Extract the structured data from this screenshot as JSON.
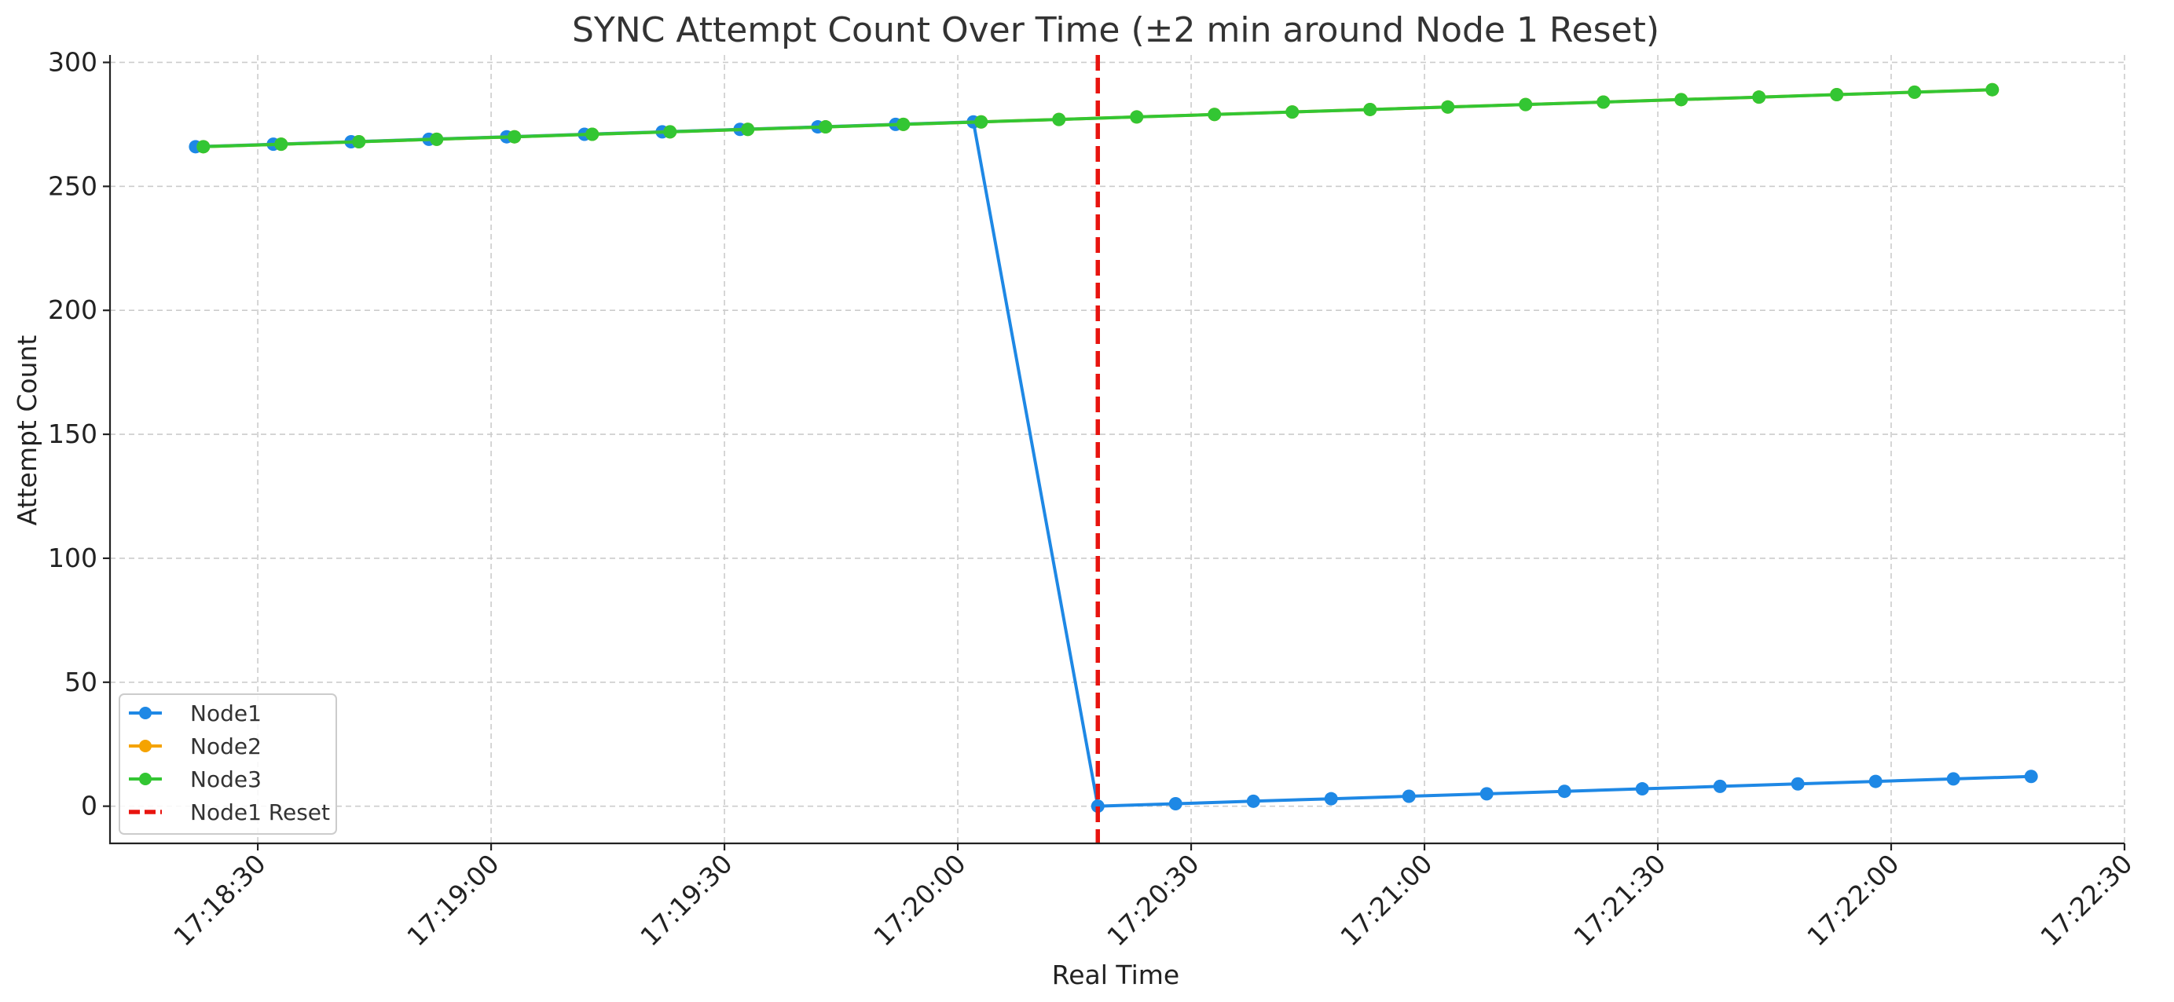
{
  "chart_data": {
    "type": "line",
    "title": "SYNC Attempt Count Over Time (±2 min around Node 1 Reset)",
    "xlabel": "Real Time",
    "ylabel": "Attempt Count",
    "xlim": [
      "17:18:11",
      "17:22:30"
    ],
    "ylim": [
      -15,
      303
    ],
    "x_ticks": [
      "17:18:30",
      "17:19:00",
      "17:19:30",
      "17:20:00",
      "17:20:30",
      "17:21:00",
      "17:21:30",
      "17:22:00",
      "17:22:30"
    ],
    "y_ticks": [
      0,
      50,
      100,
      150,
      200,
      250,
      300
    ],
    "grid": true,
    "legend_position": "lower-left",
    "series": [
      {
        "name": "Node1",
        "color": "#1e88e5",
        "marker": "circle",
        "points": [
          {
            "x": "17:18:22",
            "y": 266
          },
          {
            "x": "17:18:32",
            "y": 267
          },
          {
            "x": "17:18:42",
            "y": 268
          },
          {
            "x": "17:18:52",
            "y": 269
          },
          {
            "x": "17:19:02",
            "y": 270
          },
          {
            "x": "17:19:12",
            "y": 271
          },
          {
            "x": "17:19:22",
            "y": 272
          },
          {
            "x": "17:19:32",
            "y": 273
          },
          {
            "x": "17:19:42",
            "y": 274
          },
          {
            "x": "17:19:52",
            "y": 275
          },
          {
            "x": "17:20:02",
            "y": 276
          },
          {
            "x": "17:20:18",
            "y": 0
          },
          {
            "x": "17:20:28",
            "y": 1
          },
          {
            "x": "17:20:38",
            "y": 2
          },
          {
            "x": "17:20:48",
            "y": 3
          },
          {
            "x": "17:20:58",
            "y": 4
          },
          {
            "x": "17:21:08",
            "y": 5
          },
          {
            "x": "17:21:18",
            "y": 6
          },
          {
            "x": "17:21:28",
            "y": 7
          },
          {
            "x": "17:21:38",
            "y": 8
          },
          {
            "x": "17:21:48",
            "y": 9
          },
          {
            "x": "17:21:58",
            "y": 10
          },
          {
            "x": "17:22:08",
            "y": 11
          },
          {
            "x": "17:22:18",
            "y": 12
          }
        ]
      },
      {
        "name": "Node2",
        "color": "#f5a300",
        "marker": "circle",
        "points": [
          {
            "x": "17:18:23",
            "y": 266
          },
          {
            "x": "17:18:33",
            "y": 267
          },
          {
            "x": "17:18:43",
            "y": 268
          },
          {
            "x": "17:18:53",
            "y": 269
          },
          {
            "x": "17:19:03",
            "y": 270
          },
          {
            "x": "17:19:13",
            "y": 271
          },
          {
            "x": "17:19:23",
            "y": 272
          },
          {
            "x": "17:19:33",
            "y": 273
          },
          {
            "x": "17:19:43",
            "y": 274
          },
          {
            "x": "17:19:53",
            "y": 275
          },
          {
            "x": "17:20:03",
            "y": 276
          },
          {
            "x": "17:20:13",
            "y": 277
          },
          {
            "x": "17:20:23",
            "y": 278
          },
          {
            "x": "17:20:33",
            "y": 279
          },
          {
            "x": "17:20:43",
            "y": 280
          },
          {
            "x": "17:20:53",
            "y": 281
          },
          {
            "x": "17:21:03",
            "y": 282
          },
          {
            "x": "17:21:13",
            "y": 283
          },
          {
            "x": "17:21:23",
            "y": 284
          },
          {
            "x": "17:21:33",
            "y": 285
          },
          {
            "x": "17:21:43",
            "y": 286
          },
          {
            "x": "17:21:53",
            "y": 287
          },
          {
            "x": "17:22:03",
            "y": 288
          },
          {
            "x": "17:22:13",
            "y": 289
          }
        ]
      },
      {
        "name": "Node3",
        "color": "#33c633",
        "marker": "circle",
        "points": [
          {
            "x": "17:18:23",
            "y": 266
          },
          {
            "x": "17:18:33",
            "y": 267
          },
          {
            "x": "17:18:43",
            "y": 268
          },
          {
            "x": "17:18:53",
            "y": 269
          },
          {
            "x": "17:19:03",
            "y": 270
          },
          {
            "x": "17:19:13",
            "y": 271
          },
          {
            "x": "17:19:23",
            "y": 272
          },
          {
            "x": "17:19:33",
            "y": 273
          },
          {
            "x": "17:19:43",
            "y": 274
          },
          {
            "x": "17:19:53",
            "y": 275
          },
          {
            "x": "17:20:03",
            "y": 276
          },
          {
            "x": "17:20:13",
            "y": 277
          },
          {
            "x": "17:20:23",
            "y": 278
          },
          {
            "x": "17:20:33",
            "y": 279
          },
          {
            "x": "17:20:43",
            "y": 280
          },
          {
            "x": "17:20:53",
            "y": 281
          },
          {
            "x": "17:21:03",
            "y": 282
          },
          {
            "x": "17:21:13",
            "y": 283
          },
          {
            "x": "17:21:23",
            "y": 284
          },
          {
            "x": "17:21:33",
            "y": 285
          },
          {
            "x": "17:21:43",
            "y": 286
          },
          {
            "x": "17:21:53",
            "y": 287
          },
          {
            "x": "17:22:03",
            "y": 288
          },
          {
            "x": "17:22:13",
            "y": 289
          }
        ]
      }
    ],
    "vlines": [
      {
        "name": "Node1 Reset",
        "x": "17:20:18",
        "color": "#e8140f",
        "style": "dashed"
      }
    ]
  }
}
